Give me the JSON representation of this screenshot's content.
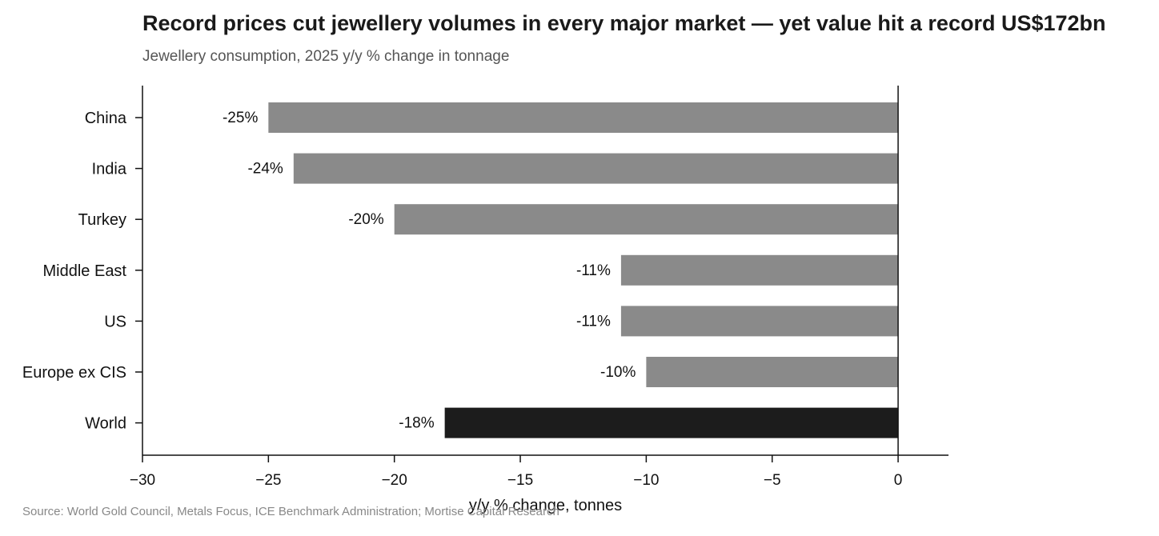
{
  "chart_data": {
    "type": "bar",
    "orientation": "horizontal",
    "title": "Record prices cut jewellery volumes in every major market — yet value hit a record US$172bn",
    "subtitle": "Jewellery consumption, 2025 y/y % change in tonnage",
    "xlabel": "y/y % change, tonnes",
    "ylabel": "",
    "xlim": [
      -30,
      2
    ],
    "xticks": [
      -30,
      -25,
      -20,
      -15,
      -10,
      -5,
      0
    ],
    "xtick_labels": [
      "−30",
      "−25",
      "−20",
      "−15",
      "−10",
      "−5",
      "0"
    ],
    "categories": [
      "China",
      "India",
      "Turkey",
      "Middle East",
      "US",
      "Europe ex CIS",
      "World"
    ],
    "values": [
      -25,
      -24,
      -20,
      -11,
      -11,
      -10,
      -18
    ],
    "data_labels": [
      "-25%",
      "-24%",
      "-20%",
      "-11%",
      "-11%",
      "-10%",
      "-18%"
    ],
    "bar_colors": [
      "#8a8a8a",
      "#8a8a8a",
      "#8a8a8a",
      "#8a8a8a",
      "#8a8a8a",
      "#8a8a8a",
      "#1c1c1c"
    ],
    "grid": false,
    "legend": "none",
    "source": "Source: World Gold Council, Metals Focus, ICE Benchmark Administration; Mortise Capital Research"
  }
}
